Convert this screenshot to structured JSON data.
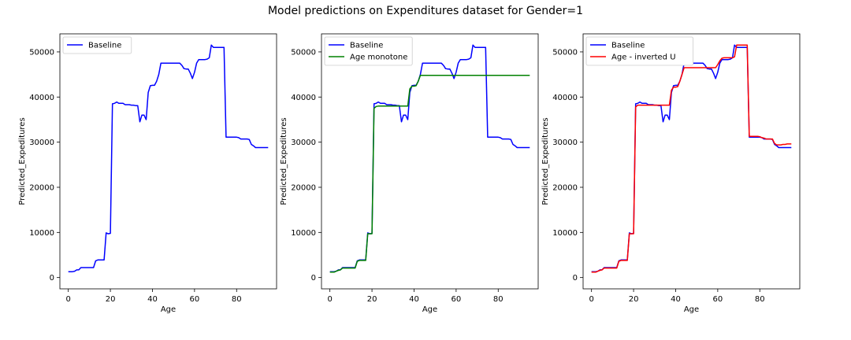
{
  "figure": {
    "title": "Model predictions on Expenditures dataset for Gender=1"
  },
  "colors": {
    "baseline": "#0000ff",
    "monotone": "#008000",
    "inverted_u": "#ff0000"
  },
  "chart_data": [
    {
      "type": "line",
      "title": "",
      "xlabel": "Age",
      "ylabel": "Predicted_Expeditures",
      "xlim": [
        -4,
        99
      ],
      "ylim": [
        -2500,
        54000
      ],
      "xticks": [
        0,
        20,
        40,
        60,
        80
      ],
      "yticks": [
        0,
        10000,
        20000,
        30000,
        40000,
        50000
      ],
      "legend": "top-left",
      "series": [
        {
          "name": "Baseline",
          "color": "#0000ff",
          "x": [
            0,
            2,
            3,
            4,
            5,
            6,
            7,
            8,
            9,
            10,
            11,
            12,
            13,
            14,
            15,
            16,
            17,
            18,
            19,
            20,
            21,
            22,
            23,
            24,
            25,
            26,
            27,
            28,
            29,
            30,
            31,
            32,
            33,
            34,
            35,
            36,
            37,
            38,
            39,
            40,
            41,
            42,
            43,
            44,
            45,
            46,
            47,
            48,
            49,
            50,
            51,
            52,
            53,
            54,
            55,
            56,
            57,
            58,
            59,
            60,
            61,
            62,
            63,
            64,
            65,
            66,
            67,
            68,
            69,
            70,
            71,
            72,
            73,
            74,
            75,
            76,
            77,
            78,
            79,
            80,
            81,
            82,
            83,
            84,
            85,
            86,
            87,
            88,
            89,
            90,
            91,
            92,
            93,
            94,
            95
          ],
          "y": [
            1300,
            1300,
            1400,
            1700,
            1700,
            2200,
            2200,
            2200,
            2200,
            2200,
            2200,
            2200,
            3700,
            3900,
            3900,
            3900,
            3900,
            9900,
            9700,
            9800,
            38500,
            38600,
            38900,
            38600,
            38600,
            38600,
            38300,
            38300,
            38300,
            38200,
            38200,
            38100,
            38100,
            34500,
            36000,
            36000,
            35000,
            41000,
            42500,
            42600,
            42600,
            43500,
            45000,
            47500,
            47500,
            47500,
            47500,
            47500,
            47500,
            47500,
            47500,
            47500,
            47500,
            47000,
            46300,
            46200,
            46200,
            45300,
            44100,
            45500,
            47500,
            48300,
            48300,
            48300,
            48300,
            48400,
            48700,
            51500,
            51000,
            51000,
            51000,
            51000,
            51000,
            51000,
            31100,
            31100,
            31100,
            31100,
            31100,
            31100,
            31000,
            30700,
            30700,
            30700,
            30700,
            30600,
            29500,
            29200,
            28800,
            28800,
            28800,
            28800,
            28800,
            28800,
            28800
          ]
        }
      ]
    },
    {
      "type": "line",
      "title": "",
      "xlabel": "Age",
      "ylabel": "Predicted_Expeditures",
      "xlim": [
        -4,
        99
      ],
      "ylim": [
        -2500,
        54000
      ],
      "xticks": [
        0,
        20,
        40,
        60,
        80
      ],
      "yticks": [
        0,
        10000,
        20000,
        30000,
        40000,
        50000
      ],
      "legend": "top-left",
      "series": [
        {
          "name": "Baseline",
          "color": "#0000ff",
          "x": [
            0,
            2,
            3,
            4,
            5,
            6,
            7,
            8,
            9,
            10,
            11,
            12,
            13,
            14,
            15,
            16,
            17,
            18,
            19,
            20,
            21,
            22,
            23,
            24,
            25,
            26,
            27,
            28,
            29,
            30,
            31,
            32,
            33,
            34,
            35,
            36,
            37,
            38,
            39,
            40,
            41,
            42,
            43,
            44,
            45,
            46,
            47,
            48,
            49,
            50,
            51,
            52,
            53,
            54,
            55,
            56,
            57,
            58,
            59,
            60,
            61,
            62,
            63,
            64,
            65,
            66,
            67,
            68,
            69,
            70,
            71,
            72,
            73,
            74,
            75,
            76,
            77,
            78,
            79,
            80,
            81,
            82,
            83,
            84,
            85,
            86,
            87,
            88,
            89,
            90,
            91,
            92,
            93,
            94,
            95
          ],
          "y": [
            1300,
            1300,
            1400,
            1700,
            1700,
            2200,
            2200,
            2200,
            2200,
            2200,
            2200,
            2200,
            3700,
            3900,
            3900,
            3900,
            3900,
            9900,
            9700,
            9800,
            38500,
            38600,
            38900,
            38600,
            38600,
            38600,
            38300,
            38300,
            38300,
            38200,
            38200,
            38100,
            38100,
            34500,
            36000,
            36000,
            35000,
            41000,
            42500,
            42600,
            42600,
            43500,
            45000,
            47500,
            47500,
            47500,
            47500,
            47500,
            47500,
            47500,
            47500,
            47500,
            47500,
            47000,
            46300,
            46200,
            46200,
            45300,
            44100,
            45500,
            47500,
            48300,
            48300,
            48300,
            48300,
            48400,
            48700,
            51500,
            51000,
            51000,
            51000,
            51000,
            51000,
            51000,
            31100,
            31100,
            31100,
            31100,
            31100,
            31100,
            31000,
            30700,
            30700,
            30700,
            30700,
            30600,
            29500,
            29200,
            28800,
            28800,
            28800,
            28800,
            28800,
            28800,
            28800
          ]
        },
        {
          "name": "Age monotone",
          "color": "#008000",
          "x": [
            0,
            2,
            3,
            4,
            5,
            6,
            7,
            8,
            9,
            10,
            11,
            12,
            13,
            14,
            15,
            16,
            17,
            18,
            19,
            20,
            21,
            22,
            23,
            24,
            25,
            26,
            27,
            28,
            29,
            30,
            31,
            32,
            33,
            34,
            35,
            36,
            37,
            38,
            39,
            40,
            41,
            42,
            43,
            44,
            45,
            50,
            55,
            60,
            65,
            70,
            75,
            80,
            85,
            90,
            95
          ],
          "y": [
            1200,
            1200,
            1400,
            1600,
            1700,
            2100,
            2100,
            2100,
            2100,
            2100,
            2100,
            2100,
            3600,
            3800,
            3800,
            3800,
            3800,
            9700,
            9700,
            9700,
            37500,
            37900,
            38000,
            38000,
            38000,
            38000,
            38000,
            38000,
            38000,
            38000,
            38000,
            38000,
            38000,
            38000,
            38000,
            38000,
            38000,
            41800,
            42400,
            42400,
            42500,
            43500,
            44800,
            44800,
            44800,
            44800,
            44800,
            44800,
            44800,
            44800,
            44800,
            44800,
            44800,
            44800,
            44800
          ]
        }
      ]
    },
    {
      "type": "line",
      "title": "",
      "xlabel": "Age",
      "ylabel": "Predicted_Expeditures",
      "xlim": [
        -4,
        99
      ],
      "ylim": [
        -2500,
        54000
      ],
      "xticks": [
        0,
        20,
        40,
        60,
        80
      ],
      "yticks": [
        0,
        10000,
        20000,
        30000,
        40000,
        50000
      ],
      "legend": "top-left",
      "series": [
        {
          "name": "Baseline",
          "color": "#0000ff",
          "x": [
            0,
            2,
            3,
            4,
            5,
            6,
            7,
            8,
            9,
            10,
            11,
            12,
            13,
            14,
            15,
            16,
            17,
            18,
            19,
            20,
            21,
            22,
            23,
            24,
            25,
            26,
            27,
            28,
            29,
            30,
            31,
            32,
            33,
            34,
            35,
            36,
            37,
            38,
            39,
            40,
            41,
            42,
            43,
            44,
            45,
            46,
            47,
            48,
            49,
            50,
            51,
            52,
            53,
            54,
            55,
            56,
            57,
            58,
            59,
            60,
            61,
            62,
            63,
            64,
            65,
            66,
            67,
            68,
            69,
            70,
            71,
            72,
            73,
            74,
            75,
            76,
            77,
            78,
            79,
            80,
            81,
            82,
            83,
            84,
            85,
            86,
            87,
            88,
            89,
            90,
            91,
            92,
            93,
            94,
            95
          ],
          "y": [
            1300,
            1300,
            1400,
            1700,
            1700,
            2200,
            2200,
            2200,
            2200,
            2200,
            2200,
            2200,
            3700,
            3900,
            3900,
            3900,
            3900,
            9900,
            9700,
            9800,
            38500,
            38600,
            38900,
            38600,
            38600,
            38600,
            38300,
            38300,
            38300,
            38200,
            38200,
            38100,
            38100,
            34500,
            36000,
            36000,
            35000,
            41000,
            42500,
            42600,
            42600,
            43500,
            45000,
            47500,
            47500,
            47500,
            47500,
            47500,
            47500,
            47500,
            47500,
            47500,
            47500,
            47000,
            46300,
            46200,
            46200,
            45300,
            44100,
            45500,
            47500,
            48300,
            48300,
            48300,
            48300,
            48400,
            48700,
            51500,
            51000,
            51000,
            51000,
            51000,
            51000,
            51000,
            31100,
            31100,
            31100,
            31100,
            31100,
            31100,
            31000,
            30700,
            30700,
            30700,
            30700,
            30600,
            29500,
            29200,
            28800,
            28800,
            28800,
            28800,
            28800,
            28800,
            28800
          ]
        },
        {
          "name": "Age - inverted U",
          "color": "#ff0000",
          "x": [
            0,
            2,
            3,
            4,
            5,
            6,
            7,
            8,
            9,
            10,
            11,
            12,
            13,
            14,
            15,
            16,
            17,
            18,
            19,
            20,
            21,
            22,
            23,
            24,
            25,
            26,
            27,
            28,
            29,
            30,
            31,
            32,
            33,
            34,
            35,
            36,
            37,
            38,
            39,
            40,
            41,
            42,
            43,
            44,
            45,
            46,
            47,
            48,
            49,
            50,
            51,
            52,
            53,
            54,
            55,
            56,
            57,
            58,
            59,
            60,
            61,
            62,
            63,
            64,
            65,
            66,
            67,
            68,
            69,
            70,
            71,
            72,
            73,
            74,
            75,
            76,
            77,
            78,
            79,
            80,
            81,
            82,
            83,
            84,
            85,
            86,
            87,
            88,
            89,
            90,
            91,
            92,
            93,
            94,
            95
          ],
          "y": [
            1200,
            1200,
            1400,
            1600,
            1700,
            2100,
            2100,
            2100,
            2100,
            2100,
            2100,
            2100,
            3600,
            3800,
            3800,
            3800,
            3800,
            9700,
            9700,
            9700,
            37800,
            38200,
            38200,
            38200,
            38200,
            38200,
            38200,
            38200,
            38200,
            38200,
            38200,
            38200,
            38200,
            38200,
            38200,
            38200,
            38200,
            41500,
            42200,
            42200,
            42300,
            43500,
            45000,
            46500,
            46500,
            46500,
            46500,
            46500,
            46500,
            46500,
            46500,
            46500,
            46500,
            46500,
            46500,
            46500,
            46500,
            46500,
            46500,
            47200,
            48000,
            48600,
            48700,
            48700,
            48700,
            48700,
            48700,
            48900,
            51500,
            51500,
            51500,
            51500,
            51500,
            51500,
            31300,
            31300,
            31300,
            31300,
            31300,
            31200,
            31000,
            30900,
            30700,
            30700,
            30700,
            30700,
            29700,
            29400,
            29400,
            29400,
            29500,
            29500,
            29600,
            29600,
            29600
          ]
        }
      ]
    }
  ]
}
